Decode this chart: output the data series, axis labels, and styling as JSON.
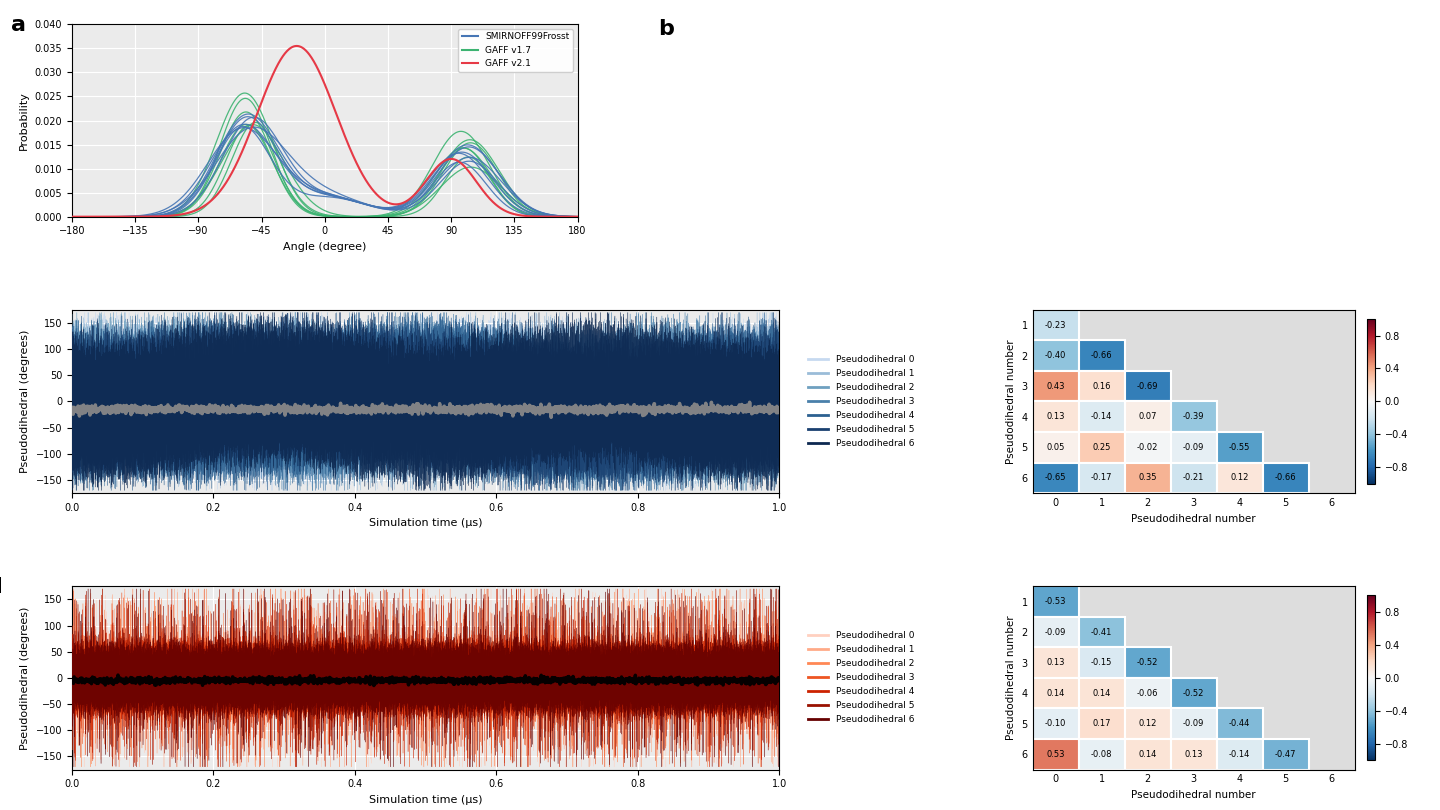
{
  "panel_a": {
    "xlabel": "Angle (degree)",
    "ylabel": "Probability",
    "xlim": [
      -180,
      180
    ],
    "ylim": [
      0,
      0.04
    ],
    "xticks": [
      -180,
      -135,
      -90,
      -45,
      0,
      45,
      90,
      135,
      180
    ],
    "yticks": [
      0.0,
      0.005,
      0.01,
      0.015,
      0.02,
      0.025,
      0.03,
      0.035,
      0.04
    ],
    "legend": [
      "SMIRNOFF99Frosst",
      "GAFF v1.7",
      "GAFF v2.1"
    ],
    "colors": [
      "#4575b4",
      "#3cb371",
      "#e63946"
    ]
  },
  "panel_c": {
    "xlabel": "Simulation time (μs)",
    "ylabel": "Pseudodihedral (degrees)",
    "xlim": [
      0.0,
      1.0
    ],
    "ylim": [
      -175,
      175
    ],
    "yticks": [
      -150,
      -100,
      -50,
      0,
      50,
      100,
      150
    ],
    "xticks": [
      0.0,
      0.2,
      0.4,
      0.6,
      0.8,
      1.0
    ],
    "mean_value": -15,
    "colors_blue": [
      "#c6d9f0",
      "#9abcd8",
      "#6fa0c0",
      "#4a80aa",
      "#2c6090",
      "#1a4070",
      "#0d2850"
    ],
    "legend_labels": [
      "Pseudodihedral 0",
      "Pseudodihedral 1",
      "Pseudodihedral 2",
      "Pseudodihedral 3",
      "Pseudodihedral 4",
      "Pseudodihedral 5",
      "Pseudodihedral 6"
    ]
  },
  "panel_c_corr": {
    "values": [
      [
        null,
        null,
        null,
        null,
        null,
        null,
        null
      ],
      [
        -0.23,
        null,
        null,
        null,
        null,
        null,
        null
      ],
      [
        -0.4,
        -0.66,
        null,
        null,
        null,
        null,
        null
      ],
      [
        0.43,
        0.16,
        -0.69,
        null,
        null,
        null,
        null
      ],
      [
        0.13,
        -0.14,
        0.07,
        -0.39,
        null,
        null,
        null
      ],
      [
        0.05,
        0.25,
        -0.02,
        -0.09,
        -0.55,
        null,
        null
      ],
      [
        -0.65,
        -0.17,
        0.35,
        -0.21,
        0.12,
        -0.66,
        null
      ]
    ]
  },
  "panel_d": {
    "xlabel": "Simulation time (μs)",
    "ylabel": "Pseudodihedral (degrees)",
    "xlim": [
      0.0,
      1.0
    ],
    "ylim": [
      -175,
      175
    ],
    "yticks": [
      -150,
      -100,
      -50,
      0,
      50,
      100,
      150
    ],
    "xticks": [
      0.0,
      0.2,
      0.4,
      0.6,
      0.8,
      1.0
    ],
    "mean_value": -5,
    "colors_red": [
      "#ffd0c0",
      "#ffaa88",
      "#ff8855",
      "#ee5522",
      "#cc2200",
      "#991100",
      "#660000"
    ],
    "legend_labels": [
      "Pseudodihedral 0",
      "Pseudodihedral 1",
      "Pseudodihedral 2",
      "Pseudodihedral 3",
      "Pseudodihedral 4",
      "Pseudodihedral 5",
      "Pseudodihedral 6"
    ]
  },
  "panel_d_corr": {
    "values": [
      [
        null,
        null,
        null,
        null,
        null,
        null,
        null
      ],
      [
        -0.53,
        null,
        null,
        null,
        null,
        null,
        null
      ],
      [
        -0.09,
        -0.41,
        null,
        null,
        null,
        null,
        null
      ],
      [
        0.13,
        -0.15,
        -0.52,
        null,
        null,
        null,
        null
      ],
      [
        0.14,
        0.14,
        -0.06,
        -0.52,
        null,
        null,
        null
      ],
      [
        -0.1,
        0.17,
        0.12,
        -0.09,
        -0.44,
        null,
        null
      ],
      [
        0.53,
        -0.08,
        0.14,
        0.13,
        -0.14,
        -0.47,
        null
      ]
    ]
  },
  "bg_color": "#ebebeb",
  "grid_color": "#ffffff"
}
